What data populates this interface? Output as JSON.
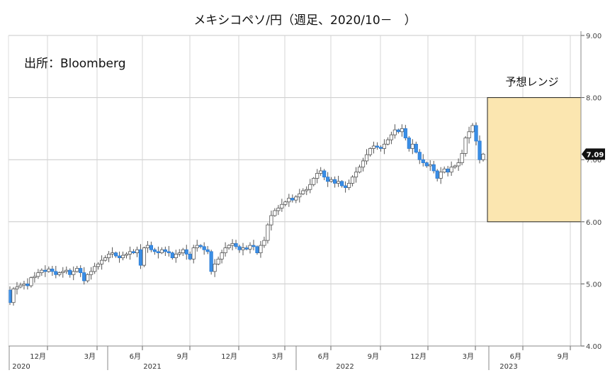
{
  "chart_data": {
    "type": "candlestick",
    "title": "メキシコペソ/円（週足、2020/10－　）",
    "source": "出所：Bloomberg",
    "ylim": [
      4.0,
      9.0
    ],
    "yticks": [
      "4.00",
      "5.00",
      "6.00",
      "7.00",
      "8.00",
      "9.00"
    ],
    "last_price_label": "7.09",
    "forecast_range": {
      "label": "予想レンジ",
      "low": 6.0,
      "high": 8.0,
      "from": "2023-04",
      "to": "2023-09"
    },
    "x_months": [
      "12月",
      "3月",
      "6月",
      "9月",
      "12月",
      "3月",
      "6月",
      "9月",
      "12月",
      "3月",
      "6月",
      "9月"
    ],
    "x_years": [
      "2020",
      "2021",
      "2022",
      "2023"
    ],
    "weekly_close": [
      4.7,
      4.92,
      4.95,
      4.98,
      5.0,
      4.97,
      5.1,
      5.12,
      5.18,
      5.22,
      5.2,
      5.24,
      5.2,
      5.15,
      5.18,
      5.2,
      5.22,
      5.15,
      5.2,
      5.25,
      5.18,
      5.05,
      5.15,
      5.2,
      5.28,
      5.32,
      5.38,
      5.42,
      5.48,
      5.5,
      5.45,
      5.42,
      5.46,
      5.48,
      5.52,
      5.5,
      5.55,
      5.3,
      5.58,
      5.62,
      5.55,
      5.52,
      5.5,
      5.55,
      5.52,
      5.5,
      5.42,
      5.48,
      5.5,
      5.55,
      5.48,
      5.4,
      5.58,
      5.62,
      5.6,
      5.55,
      5.52,
      5.2,
      5.32,
      5.4,
      5.5,
      5.58,
      5.62,
      5.65,
      5.6,
      5.55,
      5.58,
      5.56,
      5.62,
      5.6,
      5.5,
      5.62,
      5.7,
      5.95,
      6.1,
      6.18,
      6.22,
      6.28,
      6.32,
      6.38,
      6.35,
      6.4,
      6.45,
      6.5,
      6.52,
      6.6,
      6.7,
      6.78,
      6.82,
      6.72,
      6.65,
      6.68,
      6.62,
      6.65,
      6.58,
      6.55,
      6.62,
      6.72,
      6.8,
      6.88,
      6.98,
      7.08,
      7.18,
      7.22,
      7.2,
      7.18,
      7.25,
      7.32,
      7.4,
      7.48,
      7.45,
      7.5,
      7.35,
      7.18,
      7.25,
      7.12,
      7.0,
      6.95,
      6.9,
      6.92,
      6.82,
      6.7,
      6.8,
      6.85,
      6.8,
      6.88,
      6.9,
      6.95,
      7.1,
      7.35,
      7.45,
      7.55,
      7.3,
      7.0,
      7.09
    ]
  }
}
